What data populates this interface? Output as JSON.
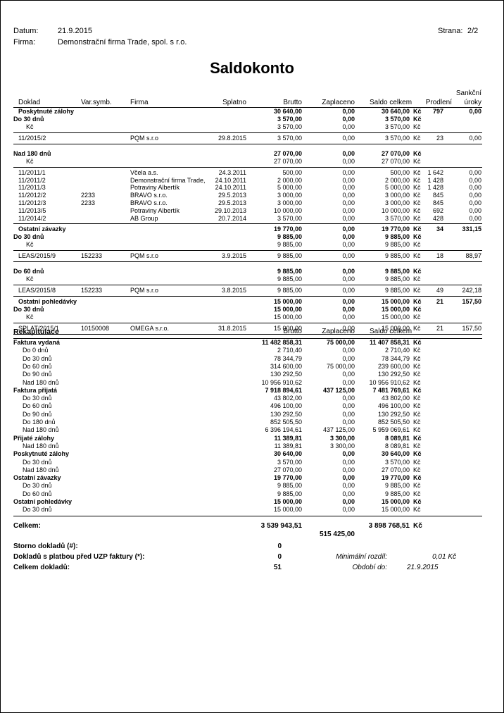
{
  "header": {
    "date_label": "Datum:",
    "date": "21.9.2015",
    "firm_label": "Firma:",
    "firm": "Demonstrační firma Trade, spol. s r.o.",
    "page_label": "Strana:",
    "page": "2/2"
  },
  "title": "Saldokonto",
  "columns": {
    "doklad": "Doklad",
    "var": "Var.symb.",
    "firma": "Firma",
    "splatno": "Splatno",
    "brutto": "Brutto",
    "zaplaceno": "Zaplaceno",
    "saldo": "Saldo celkem",
    "prodleni": "Prodlení",
    "sankcni1": "Sankční",
    "sankcni2": "úroky"
  },
  "rows": [
    {
      "t": "group",
      "label": "Poskytnuté zálohy",
      "brutto": "30 640,00",
      "zap": "0,00",
      "saldo": "30 640,00",
      "kc": "Kč",
      "prod": "797",
      "sank": "0,00"
    },
    {
      "t": "bucket",
      "label": "Do 30 dnů",
      "brutto": "3 570,00",
      "zap": "0,00",
      "saldo": "3 570,00",
      "kc": "Kč"
    },
    {
      "t": "cur",
      "label": "Kč",
      "brutto": "3 570,00",
      "zap": "0,00",
      "saldo": "3 570,00",
      "kc": "Kč"
    },
    {
      "t": "line"
    },
    {
      "t": "doc",
      "doc": "11/2015/2",
      "var": "",
      "firma": "PQM s.r.o",
      "spl": "29.8.2015",
      "brutto": "3 570,00",
      "zap": "0,00",
      "saldo": "3 570,00",
      "kc": "Kč",
      "prod": "23",
      "sank": "0,00"
    },
    {
      "t": "line"
    },
    {
      "t": "gap"
    },
    {
      "t": "bucket",
      "label": "Nad 180 dnů",
      "brutto": "27 070,00",
      "zap": "0,00",
      "saldo": "27 070,00",
      "kc": "Kč"
    },
    {
      "t": "cur",
      "label": "Kč",
      "brutto": "27 070,00",
      "zap": "0,00",
      "saldo": "27 070,00",
      "kc": "Kč"
    },
    {
      "t": "line"
    },
    {
      "t": "doc",
      "doc": "11/2011/1",
      "var": "",
      "firma": "Včela a.s.",
      "spl": "24.3.2011",
      "brutto": "500,00",
      "zap": "0,00",
      "saldo": "500,00",
      "kc": "Kč",
      "prod": "1 642",
      "sank": "0,00"
    },
    {
      "t": "doc",
      "doc": "11/2011/2",
      "var": "",
      "firma": "Demonstrační firma Trade,",
      "spl": "24.10.2011",
      "brutto": "2 000,00",
      "zap": "0,00",
      "saldo": "2 000,00",
      "kc": "Kč",
      "prod": "1 428",
      "sank": "0,00"
    },
    {
      "t": "doc",
      "doc": "11/2011/3",
      "var": "",
      "firma": "Potraviny Albertík",
      "spl": "24.10.2011",
      "brutto": "5 000,00",
      "zap": "0,00",
      "saldo": "5 000,00",
      "kc": "Kč",
      "prod": "1 428",
      "sank": "0,00"
    },
    {
      "t": "doc",
      "doc": "11/2012/2",
      "var": "2233",
      "firma": "BRAVO s.r.o.",
      "spl": "29.5.2013",
      "brutto": "3 000,00",
      "zap": "0,00",
      "saldo": "3 000,00",
      "kc": "Kč",
      "prod": "845",
      "sank": "0,00"
    },
    {
      "t": "doc",
      "doc": "11/2012/3",
      "var": "2233",
      "firma": "BRAVO s.r.o.",
      "spl": "29.5.2013",
      "brutto": "3 000,00",
      "zap": "0,00",
      "saldo": "3 000,00",
      "kc": "Kč",
      "prod": "845",
      "sank": "0,00"
    },
    {
      "t": "doc",
      "doc": "11/2013/5",
      "var": "",
      "firma": "Potraviny Albertík",
      "spl": "29.10.2013",
      "brutto": "10 000,00",
      "zap": "0,00",
      "saldo": "10 000,00",
      "kc": "Kč",
      "prod": "692",
      "sank": "0,00"
    },
    {
      "t": "doc",
      "doc": "11/2014/2",
      "var": "",
      "firma": "AB Group",
      "spl": "20.7.2014",
      "brutto": "3 570,00",
      "zap": "0,00",
      "saldo": "3 570,00",
      "kc": "Kč",
      "prod": "428",
      "sank": "0,00"
    },
    {
      "t": "line"
    },
    {
      "t": "group",
      "label": "Ostatní závazky",
      "brutto": "19 770,00",
      "zap": "0,00",
      "saldo": "19 770,00",
      "kc": "Kč",
      "prod": "34",
      "sank": "331,15"
    },
    {
      "t": "bucket",
      "label": "Do 30 dnů",
      "brutto": "9 885,00",
      "zap": "0,00",
      "saldo": "9 885,00",
      "kc": "Kč"
    },
    {
      "t": "cur",
      "label": "Kč",
      "brutto": "9 885,00",
      "zap": "0,00",
      "saldo": "9 885,00",
      "kc": "Kč"
    },
    {
      "t": "line"
    },
    {
      "t": "doc",
      "doc": "LEAS/2015/9",
      "var": "152233",
      "firma": "PQM s.r.o",
      "spl": "3.9.2015",
      "brutto": "9 885,00",
      "zap": "0,00",
      "saldo": "9 885,00",
      "kc": "Kč",
      "prod": "18",
      "sank": "88,97"
    },
    {
      "t": "line"
    },
    {
      "t": "gap"
    },
    {
      "t": "bucket",
      "label": "Do 60 dnů",
      "brutto": "9 885,00",
      "zap": "0,00",
      "saldo": "9 885,00",
      "kc": "Kč"
    },
    {
      "t": "cur",
      "label": "Kč",
      "brutto": "9 885,00",
      "zap": "0,00",
      "saldo": "9 885,00",
      "kc": "Kč"
    },
    {
      "t": "line"
    },
    {
      "t": "doc",
      "doc": "LEAS/2015/8",
      "var": "152233",
      "firma": "PQM s.r.o",
      "spl": "3.8.2015",
      "brutto": "9 885,00",
      "zap": "0,00",
      "saldo": "9 885,00",
      "kc": "Kč",
      "prod": "49",
      "sank": "242,18"
    },
    {
      "t": "line"
    },
    {
      "t": "group",
      "label": "Ostatní pohledávky",
      "brutto": "15 000,00",
      "zap": "0,00",
      "saldo": "15 000,00",
      "kc": "Kč",
      "prod": "21",
      "sank": "157,50"
    },
    {
      "t": "bucket",
      "label": "Do 30 dnů",
      "brutto": "15 000,00",
      "zap": "0,00",
      "saldo": "15 000,00",
      "kc": "Kč"
    },
    {
      "t": "cur",
      "label": "Kč",
      "brutto": "15 000,00",
      "zap": "0,00",
      "saldo": "15 000,00",
      "kc": "Kč"
    },
    {
      "t": "line"
    },
    {
      "t": "doc",
      "doc": "SPLAT/2015/1",
      "var": "10150008",
      "firma": "OMEGA s.r.o.",
      "spl": "31.8.2015",
      "brutto": "15 000,00",
      "zap": "0,00",
      "saldo": "15 000,00",
      "kc": "Kč",
      "prod": "21",
      "sank": "157,50"
    },
    {
      "t": "line"
    }
  ],
  "recap": {
    "title": "Rekapitulace",
    "brutto": "Brutto",
    "zaplaceno": "Zaplaceno",
    "saldo": "Saldo celkem",
    "rows": [
      {
        "t": "main",
        "label": "Faktura vydaná",
        "brutto": "11 482 858,31",
        "zap": "75 000,00",
        "saldo": "11 407 858,31",
        "kc": "Kč"
      },
      {
        "t": "sub",
        "label": "Do 0 dnů",
        "brutto": "2 710,40",
        "zap": "0,00",
        "saldo": "2 710,40",
        "kc": "Kč"
      },
      {
        "t": "sub",
        "label": "Do 30 dnů",
        "brutto": "78 344,79",
        "zap": "0,00",
        "saldo": "78 344,79",
        "kc": "Kč"
      },
      {
        "t": "sub",
        "label": "Do 60 dnů",
        "brutto": "314 600,00",
        "zap": "75 000,00",
        "saldo": "239 600,00",
        "kc": "Kč"
      },
      {
        "t": "sub",
        "label": "Do 90 dnů",
        "brutto": "130 292,50",
        "zap": "0,00",
        "saldo": "130 292,50",
        "kc": "Kč"
      },
      {
        "t": "sub",
        "label": "Nad 180 dnů",
        "brutto": "10 956 910,62",
        "zap": "0,00",
        "saldo": "10 956 910,62",
        "kc": "Kč"
      },
      {
        "t": "main",
        "label": "Faktura přijatá",
        "brutto": "7 918 894,61",
        "zap": "437 125,00",
        "saldo": "7 481 769,61",
        "kc": "Kč"
      },
      {
        "t": "sub",
        "label": "Do 30 dnů",
        "brutto": "43 802,00",
        "zap": "0,00",
        "saldo": "43 802,00",
        "kc": "Kč"
      },
      {
        "t": "sub",
        "label": "Do 60 dnů",
        "brutto": "496 100,00",
        "zap": "0,00",
        "saldo": "496 100,00",
        "kc": "Kč"
      },
      {
        "t": "sub",
        "label": "Do 90 dnů",
        "brutto": "130 292,50",
        "zap": "0,00",
        "saldo": "130 292,50",
        "kc": "Kč"
      },
      {
        "t": "sub",
        "label": "Do 180 dnů",
        "brutto": "852 505,50",
        "zap": "0,00",
        "saldo": "852 505,50",
        "kc": "Kč"
      },
      {
        "t": "sub",
        "label": "Nad 180 dnů",
        "brutto": "6 396 194,61",
        "zap": "437 125,00",
        "saldo": "5 959 069,61",
        "kc": "Kč"
      },
      {
        "t": "main",
        "label": "Přijaté zálohy",
        "brutto": "11 389,81",
        "zap": "3 300,00",
        "saldo": "8 089,81",
        "kc": "Kč"
      },
      {
        "t": "sub",
        "label": "Nad 180 dnů",
        "brutto": "11 389,81",
        "zap": "3 300,00",
        "saldo": "8 089,81",
        "kc": "Kč"
      },
      {
        "t": "main",
        "label": "Poskytnuté zálohy",
        "brutto": "30 640,00",
        "zap": "0,00",
        "saldo": "30 640,00",
        "kc": "Kč"
      },
      {
        "t": "sub",
        "label": "Do 30 dnů",
        "brutto": "3 570,00",
        "zap": "0,00",
        "saldo": "3 570,00",
        "kc": "Kč"
      },
      {
        "t": "sub",
        "label": "Nad 180 dnů",
        "brutto": "27 070,00",
        "zap": "0,00",
        "saldo": "27 070,00",
        "kc": "Kč"
      },
      {
        "t": "main",
        "label": "Ostatní závazky",
        "brutto": "19 770,00",
        "zap": "0,00",
        "saldo": "19 770,00",
        "kc": "Kč"
      },
      {
        "t": "sub",
        "label": "Do 30 dnů",
        "brutto": "9 885,00",
        "zap": "0,00",
        "saldo": "9 885,00",
        "kc": "Kč"
      },
      {
        "t": "sub",
        "label": "Do 60 dnů",
        "brutto": "9 885,00",
        "zap": "0,00",
        "saldo": "9 885,00",
        "kc": "Kč"
      },
      {
        "t": "main",
        "label": "Ostatní pohledávky",
        "brutto": "15 000,00",
        "zap": "0,00",
        "saldo": "15 000,00",
        "kc": "Kč"
      },
      {
        "t": "sub",
        "label": "Do 30 dnů",
        "brutto": "15 000,00",
        "zap": "0,00",
        "saldo": "15 000,00",
        "kc": "Kč"
      }
    ]
  },
  "totals": {
    "label": "Celkem:",
    "brutto": "3 539 943,51",
    "zaplaceno": "515 425,00",
    "saldo": "3 898 768,51",
    "kc": "Kč"
  },
  "summary": {
    "storno_label": "Storno dokladů (#):",
    "storno": "0",
    "uzp_label": "Dokladů s platbou před UZP faktury (*):",
    "uzp": "0",
    "count_label": "Celkem dokladů:",
    "count": "51",
    "min_label": "Minimální rozdíl:",
    "min": "0,01 Kč",
    "period_label": "Období do:",
    "period": "21.9.2015"
  }
}
